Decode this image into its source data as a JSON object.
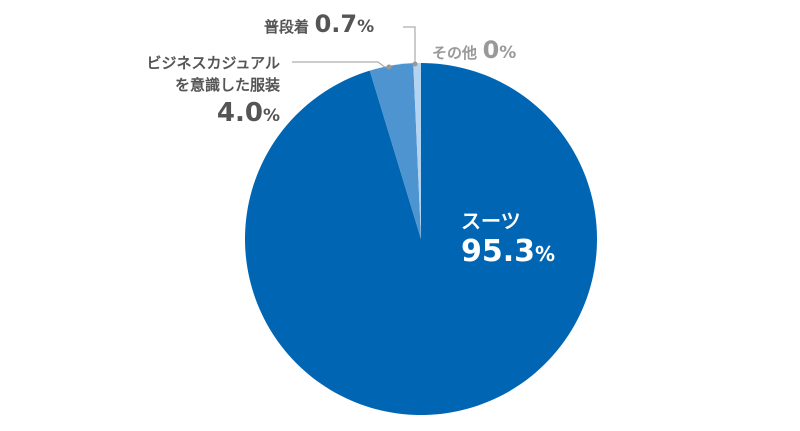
{
  "chart_data": {
    "type": "pie",
    "title": "",
    "start_angle_deg": 0,
    "direction": "clockwise",
    "slices": [
      {
        "label": "スーツ",
        "value": 95.3,
        "display": "95.3",
        "unit": "%",
        "color": "#0066b3"
      },
      {
        "label": "ビジネスカジュアルを意識した服装",
        "value": 4.0,
        "display": "4.0",
        "unit": "%",
        "color": "#4d94d1"
      },
      {
        "label": "普段着",
        "value": 0.7,
        "display": "0.7",
        "unit": "%",
        "color": "#b3d4f0"
      },
      {
        "label": "その他",
        "value": 0,
        "display": "0",
        "unit": "%",
        "color": "#cccccc"
      }
    ],
    "legend": "none (callout labels)"
  },
  "labels": {
    "suit": {
      "name": "スーツ",
      "num": "95.3",
      "pct": "%"
    },
    "casual": {
      "name_line1": "ビジネスカジュアル",
      "name_line2": "を意識した服装",
      "num": "4.0",
      "pct": "%"
    },
    "normal": {
      "name": "普段着",
      "num": "0.7",
      "pct": "%"
    },
    "other": {
      "name": "その他",
      "num": "0",
      "pct": "%"
    }
  },
  "colors": {
    "suit": "#0066b3",
    "casual": "#4d94d1",
    "normal": "#b3d4f0",
    "leader": "#999999",
    "label_text": "#555555",
    "other_text": "#999999"
  }
}
